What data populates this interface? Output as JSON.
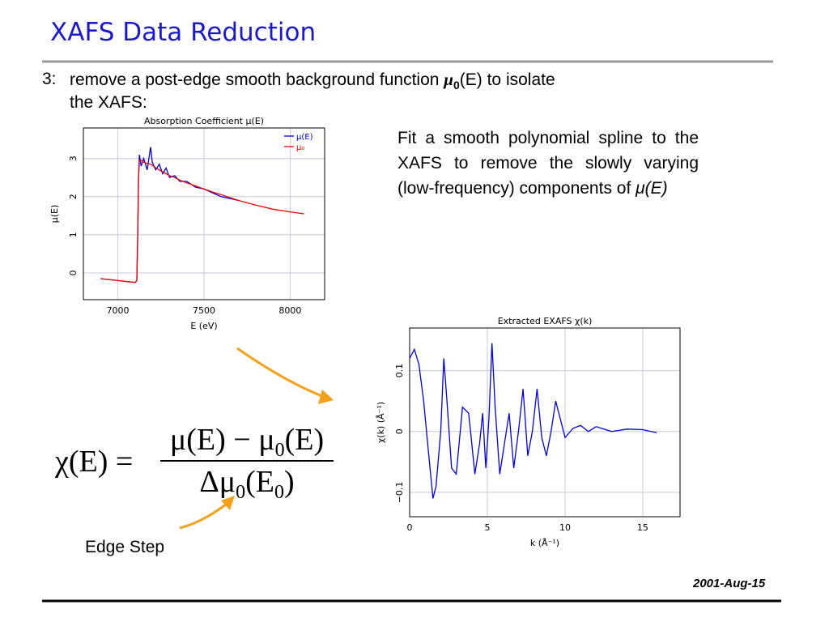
{
  "slide": {
    "title": "XAFS Data Reduction",
    "step_number": "3:",
    "step_text": [
      "remove a post-edge smooth background function ",
      "μ",
      "0",
      "(E) to  isolate"
    ],
    "step_text_line2": "the XAFS:",
    "description": "Fit a smooth polynomial spline to the XAFS to remove the slowly varying (low-frequency) components of ",
    "description_symbol": "μ(E)",
    "formula": {
      "lhs": "χ(E) =",
      "numerator": [
        "μ(E) − μ",
        "0",
        "(E)"
      ],
      "denominator": [
        "Δμ",
        "0",
        "(E",
        "0",
        ")"
      ]
    },
    "edge_step_label": "Edge Step",
    "date": "2001-Aug-15"
  },
  "chart_data": [
    {
      "type": "line",
      "title": "Absorption Coefficient μ(E)",
      "x_label": "E (eV)",
      "y_label": "μ(E)",
      "x": [
        6900,
        7000,
        7100,
        7110,
        7115,
        7120,
        7125,
        7135,
        7150,
        7170,
        7190,
        7200,
        7220,
        7240,
        7260,
        7280,
        7300,
        7330,
        7360,
        7400,
        7450,
        7500,
        7550,
        7600,
        7700,
        7800,
        7900,
        8000,
        8080
      ],
      "series": [
        {
          "name": "μ(E)",
          "color": "#0000dd",
          "values": [
            -0.15,
            -0.2,
            -0.25,
            -0.2,
            1.0,
            2.5,
            3.1,
            2.8,
            3.0,
            2.7,
            3.3,
            2.9,
            2.7,
            2.85,
            2.6,
            2.75,
            2.5,
            2.55,
            2.4,
            2.4,
            2.25,
            2.2,
            2.1,
            2.0,
            1.9,
            null,
            null,
            null,
            null
          ]
        },
        {
          "name": "μ₀",
          "color": "#ee0000",
          "values": [
            -0.15,
            -0.2,
            -0.25,
            -0.2,
            0.9,
            2.5,
            2.95,
            2.95,
            2.9,
            2.87,
            2.85,
            2.82,
            2.76,
            2.7,
            2.65,
            2.6,
            2.55,
            2.5,
            2.43,
            2.36,
            2.28,
            2.2,
            2.12,
            2.05,
            1.9,
            1.78,
            1.67,
            1.6,
            1.55
          ]
        }
      ],
      "xlim": [
        6800,
        8200
      ],
      "ylim": [
        -0.7,
        3.8
      ],
      "xticks": [
        7000,
        7500,
        8000
      ],
      "yticks": [
        0,
        1,
        2,
        3
      ],
      "grid": true,
      "legend": "upper right"
    },
    {
      "type": "line",
      "title": "Extracted EXAFS χ(k)",
      "x_label": "k (Å⁻¹)",
      "y_label": "χ(k) (Å⁻¹)",
      "x": [
        0,
        0.3,
        0.6,
        0.9,
        1.2,
        1.5,
        1.7,
        2.0,
        2.2,
        2.4,
        2.7,
        3.0,
        3.4,
        3.8,
        4.2,
        4.5,
        4.7,
        4.9,
        5.1,
        5.3,
        5.5,
        5.8,
        6.1,
        6.4,
        6.7,
        7.0,
        7.3,
        7.6,
        7.9,
        8.2,
        8.5,
        8.8,
        9.1,
        9.4,
        9.7,
        10.0,
        10.5,
        11,
        11.5,
        12,
        13,
        14,
        15,
        15.9
      ],
      "series": [
        {
          "color": "#0000dd",
          "values": [
            0.12,
            0.135,
            0.11,
            0.05,
            -0.03,
            -0.11,
            -0.09,
            0.0,
            0.12,
            0.05,
            -0.06,
            -0.07,
            0.04,
            0.03,
            -0.07,
            -0.02,
            0.03,
            -0.06,
            0.02,
            0.145,
            0.04,
            -0.07,
            -0.02,
            0.03,
            -0.06,
            0.0,
            0.07,
            -0.04,
            0.0,
            0.07,
            -0.01,
            -0.04,
            0.0,
            0.05,
            0.02,
            -0.01,
            0.005,
            0.01,
            0.0,
            0.008,
            0.0,
            0.004,
            0.003,
            -0.002
          ]
        }
      ],
      "xlim": [
        0,
        17.4
      ],
      "ylim": [
        -0.14,
        0.17
      ],
      "xticks": [
        0,
        5,
        10,
        15
      ],
      "yticks": [
        {
          "value": -0.1,
          "label": "−0.1"
        },
        0,
        0.1
      ],
      "grid": true
    }
  ]
}
